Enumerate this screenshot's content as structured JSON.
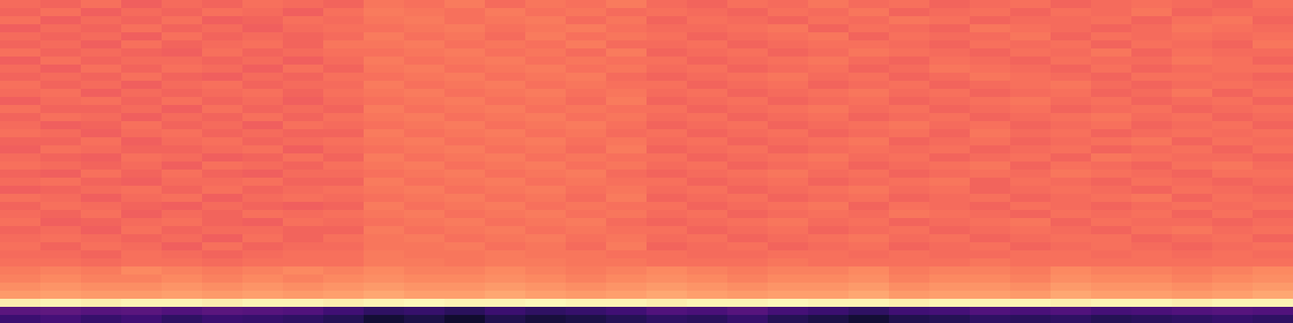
{
  "chart_data": {
    "type": "heatmap",
    "tick_labels": false,
    "color_range": [
      -80,
      0
    ],
    "cells": [
      [
        -25,
        -26,
        -24,
        -27,
        -25,
        -26,
        -24,
        -25,
        -26,
        -23,
        -24,
        -22,
        -25,
        -23,
        -24,
        -22,
        -25,
        -26,
        -24,
        -25,
        -23,
        -25,
        -24,
        -26,
        -25,
        -24,
        -26,
        -25,
        -24,
        -25,
        -26,
        -24
      ],
      [
        -26,
        -24,
        -27,
        -25,
        -26,
        -24,
        -25,
        -27,
        -24,
        -22,
        -23,
        -24,
        -22,
        -24,
        -23,
        -25,
        -24,
        -25,
        -26,
        -24,
        -25,
        -23,
        -26,
        -25,
        -24,
        -26,
        -24,
        -25,
        -23,
        -26,
        -25,
        -25
      ],
      [
        -24,
        -27,
        -25,
        -26,
        -24,
        -27,
        -26,
        -24,
        -25,
        -23,
        -22,
        -24,
        -23,
        -22,
        -25,
        -23,
        -26,
        -24,
        -25,
        -26,
        -24,
        -25,
        -23,
        -24,
        -26,
        -25,
        -25,
        -24,
        -26,
        -24,
        -23,
        -26
      ],
      [
        -27,
        -25,
        -26,
        -24,
        -26,
        -25,
        -27,
        -25,
        -24,
        -24,
        -23,
        -22,
        -24,
        -23,
        -22,
        -24,
        -25,
        -25,
        -24,
        -23,
        -26,
        -24,
        -25,
        -26,
        -23,
        -24,
        -25,
        -26,
        -25,
        -23,
        -24,
        -25
      ],
      [
        -25,
        -26,
        -25,
        -27,
        -24,
        -26,
        -25,
        -26,
        -25,
        -22,
        -24,
        -23,
        -25,
        -22,
        -24,
        -23,
        -24,
        -26,
        -25,
        -24,
        -23,
        -26,
        -24,
        -25,
        -25,
        -23,
        -26,
        -24,
        -25,
        -24,
        -25,
        -24
      ],
      [
        -26,
        -25,
        -27,
        -24,
        -26,
        -25,
        -24,
        -26,
        -23,
        -23,
        -22,
        -24,
        -23,
        -24,
        -22,
        -25,
        -25,
        -24,
        -26,
        -25,
        -24,
        -24,
        -25,
        -26,
        -24,
        -25,
        -24,
        -26,
        -24,
        -25,
        -26,
        -23
      ],
      [
        -24,
        -26,
        -25,
        -26,
        -27,
        -24,
        -26,
        -25,
        -24,
        -24,
        -23,
        -22,
        -24,
        -23,
        -25,
        -22,
        -26,
        -25,
        -24,
        -26,
        -25,
        -23,
        -24,
        -25,
        -26,
        -24,
        -25,
        -23,
        -26,
        -24,
        -25,
        -25
      ],
      [
        -27,
        -24,
        -26,
        -25,
        -25,
        -26,
        -25,
        -27,
        -25,
        -22,
        -24,
        -23,
        -22,
        -24,
        -23,
        -24,
        -24,
        -26,
        -25,
        -24,
        -23,
        -25,
        -26,
        -24,
        -25,
        -26,
        -24,
        -25,
        -25,
        -23,
        -24,
        -26
      ],
      [
        -25,
        -27,
        -24,
        -26,
        -24,
        -25,
        -27,
        -24,
        -26,
        -23,
        -22,
        -24,
        -23,
        -22,
        -24,
        -23,
        -25,
        -24,
        -26,
        -25,
        -24,
        -26,
        -25,
        -23,
        -24,
        -25,
        -26,
        -24,
        -26,
        -25,
        -24,
        -24
      ],
      [
        -26,
        -25,
        -26,
        -24,
        -26,
        -27,
        -25,
        -26,
        -24,
        -24,
        -23,
        -22,
        -24,
        -23,
        -22,
        -25,
        -26,
        -25,
        -24,
        -23,
        -25,
        -24,
        -26,
        -25,
        -23,
        -24,
        -25,
        -26,
        -24,
        -24,
        -25,
        -26
      ],
      [
        -24,
        -26,
        -25,
        -27,
        -25,
        -24,
        -26,
        -25,
        -25,
        -22,
        -24,
        -23,
        -22,
        -24,
        -23,
        -24,
        -24,
        -26,
        -25,
        -24,
        -26,
        -25,
        -24,
        -26,
        -25,
        -24,
        -23,
        -25,
        -26,
        -25,
        -24,
        -25
      ],
      [
        -25,
        -24,
        -27,
        -25,
        -26,
        -25,
        -24,
        -26,
        -24,
        -23,
        -22,
        -24,
        -23,
        -22,
        -24,
        -23,
        -25,
        -24,
        -26,
        -25,
        -24,
        -23,
        -25,
        -24,
        -26,
        -25,
        -24,
        -26,
        -25,
        -23,
        -26,
        -24
      ],
      [
        -27,
        -25,
        -24,
        -26,
        -24,
        -26,
        -25,
        -27,
        -25,
        -24,
        -23,
        -22,
        -24,
        -23,
        -25,
        -22,
        -26,
        -25,
        -24,
        -26,
        -25,
        -24,
        -26,
        -25,
        -24,
        -23,
        -25,
        -24,
        -26,
        -25,
        -24,
        -26
      ],
      [
        -24,
        -26,
        -26,
        -25,
        -27,
        -24,
        -26,
        -25,
        -26,
        -22,
        -24,
        -23,
        -22,
        -24,
        -23,
        -24,
        -24,
        -26,
        -25,
        -24,
        -23,
        -25,
        -24,
        -26,
        -25,
        -24,
        -26,
        -25,
        -24,
        -26,
        -25,
        -24
      ],
      [
        -26,
        -24,
        -25,
        -27,
        -25,
        -26,
        -24,
        -26,
        -24,
        -23,
        -22,
        -24,
        -23,
        -22,
        -24,
        -23,
        -25,
        -24,
        -26,
        -25,
        -24,
        -26,
        -25,
        -24,
        -26,
        -25,
        -24,
        -23,
        -25,
        -24,
        -26,
        -25
      ],
      [
        -25,
        -27,
        -26,
        -24,
        -26,
        -25,
        -27,
        -24,
        -25,
        -24,
        -23,
        -22,
        -24,
        -23,
        -22,
        -24,
        -26,
        -25,
        -24,
        -26,
        -25,
        -24,
        -23,
        -25,
        -24,
        -26,
        -25,
        -24,
        -26,
        -25,
        -24,
        -26
      ],
      [
        -24,
        -25,
        -27,
        -25,
        -24,
        -26,
        -25,
        -26,
        -26,
        -22,
        -24,
        -23,
        -22,
        -24,
        -23,
        -25,
        -24,
        -26,
        -25,
        -24,
        -26,
        -25,
        -24,
        -26,
        -23,
        -25,
        -24,
        -26,
        -25,
        -24,
        -25,
        -24
      ],
      [
        -26,
        -26,
        -24,
        -27,
        -25,
        -24,
        -26,
        -25,
        -24,
        -23,
        -22,
        -24,
        -23,
        -22,
        -24,
        -23,
        -25,
        -24,
        -26,
        -25,
        -24,
        -23,
        -26,
        -25,
        -24,
        -26,
        -25,
        -24,
        -23,
        -26,
        -24,
        -25
      ],
      [
        -27,
        -24,
        -25,
        -26,
        -26,
        -25,
        -24,
        -27,
        -25,
        -24,
        -23,
        -22,
        -24,
        -23,
        -25,
        -22,
        -26,
        -25,
        -24,
        -26,
        -25,
        -24,
        -25,
        -24,
        -26,
        -25,
        -24,
        -26,
        -25,
        -24,
        -26,
        -24
      ],
      [
        -25,
        -26,
        -27,
        -24,
        -25,
        -27,
        -26,
        -24,
        -26,
        -22,
        -24,
        -23,
        -22,
        -24,
        -23,
        -24,
        -24,
        -26,
        -25,
        -24,
        -23,
        -25,
        -24,
        -26,
        -25,
        -24,
        -26,
        -23,
        -24,
        -25,
        -25,
        -26
      ],
      [
        -24,
        -25,
        -26,
        -25,
        -27,
        -24,
        -25,
        -26,
        -24,
        -23,
        -22,
        -24,
        -23,
        -22,
        -24,
        -23,
        -25,
        -24,
        -26,
        -25,
        -24,
        -26,
        -25,
        -24,
        -23,
        -26,
        -24,
        -25,
        -26,
        -24,
        -23,
        -25
      ],
      [
        -26,
        -27,
        -24,
        -26,
        -24,
        -26,
        -27,
        -25,
        -25,
        -24,
        -23,
        -22,
        -24,
        -23,
        -22,
        -25,
        -26,
        -25,
        -24,
        -23,
        -25,
        -24,
        -26,
        -25,
        -24,
        -25,
        -23,
        -24,
        -25,
        -26,
        -24,
        -24
      ],
      [
        -25,
        -24,
        -26,
        -27,
        -25,
        -25,
        -24,
        -26,
        -26,
        -22,
        -24,
        -23,
        -22,
        -24,
        -23,
        -24,
        -24,
        -26,
        -25,
        -24,
        -26,
        -25,
        -24,
        -23,
        -26,
        -24,
        -25,
        -26,
        -24,
        -25,
        -26,
        -25
      ],
      [
        -27,
        -26,
        -25,
        -24,
        -26,
        -24,
        -26,
        -25,
        -24,
        -23,
        -22,
        -24,
        -23,
        -22,
        -24,
        -23,
        -25,
        -24,
        -26,
        -25,
        -24,
        -23,
        -25,
        -24,
        -26,
        -25,
        -24,
        -25,
        -26,
        -24,
        -25,
        -26
      ],
      [
        -24,
        -25,
        -27,
        -25,
        -24,
        -27,
        -25,
        -24,
        -25,
        -24,
        -23,
        -22,
        -24,
        -23,
        -25,
        -22,
        -26,
        -25,
        -24,
        -26,
        -25,
        -24,
        -26,
        -25,
        -24,
        -26,
        -25,
        -24,
        -23,
        -26,
        -24,
        -25
      ],
      [
        -26,
        -24,
        -25,
        -26,
        -27,
        -25,
        -26,
        -27,
        -26,
        -22,
        -24,
        -23,
        -22,
        -24,
        -23,
        -24,
        -24,
        -26,
        -25,
        -24,
        -23,
        -26,
        -24,
        -25,
        -26,
        -24,
        -25,
        -26,
        -25,
        -24,
        -25,
        -24
      ],
      [
        -25,
        -26,
        -24,
        -27,
        -25,
        -26,
        -24,
        -25,
        -24,
        -23,
        -22,
        -24,
        -23,
        -22,
        -24,
        -23,
        -25,
        -24,
        -26,
        -25,
        -24,
        -25,
        -23,
        -24,
        -25,
        -26,
        -24,
        -25,
        -24,
        -26,
        -24,
        -26
      ],
      [
        -24,
        -27,
        -26,
        -25,
        -24,
        -26,
        -27,
        -24,
        -25,
        -24,
        -23,
        -22,
        -24,
        -23,
        -22,
        -25,
        -26,
        -25,
        -24,
        -23,
        -25,
        -24,
        -26,
        -25,
        -24,
        -23,
        -26,
        -24,
        -25,
        -25,
        -26,
        -25
      ],
      [
        -26,
        -25,
        -27,
        -24,
        -26,
        -25,
        -25,
        -26,
        -26,
        -22,
        -24,
        -23,
        -22,
        -24,
        -23,
        -24,
        -24,
        -26,
        -25,
        -24,
        -26,
        -25,
        -24,
        -26,
        -25,
        -24,
        -25,
        -26,
        -24,
        -23,
        -25,
        -24
      ],
      [
        -25,
        -24,
        -25,
        -26,
        -25,
        -27,
        -24,
        -26,
        -24,
        -23,
        -22,
        -24,
        -23,
        -22,
        -24,
        -23,
        -25,
        -24,
        -26,
        -25,
        -24,
        -23,
        -25,
        -24,
        -26,
        -25,
        -24,
        -24,
        -26,
        -25,
        -24,
        -26
      ],
      [
        -24,
        -26,
        -24,
        -25,
        -27,
        -24,
        -26,
        -25,
        -25,
        -23,
        -23,
        -22,
        -24,
        -23,
        -25,
        -22,
        -26,
        -25,
        -24,
        -26,
        -25,
        -24,
        -26,
        -25,
        -24,
        -26,
        -25,
        -24,
        -25,
        -26,
        -25,
        -24
      ],
      [
        -25,
        -25,
        -26,
        -24,
        -25,
        -26,
        -25,
        -24,
        -24,
        -22,
        -23,
        -23,
        -22,
        -23,
        -23,
        -24,
        -24,
        -25,
        -25,
        -24,
        -24,
        -25,
        -24,
        -25,
        -25,
        -24,
        -24,
        -25,
        -24,
        -25,
        -24,
        -25
      ],
      [
        -24,
        -24,
        -25,
        -24,
        -24,
        -25,
        -24,
        -24,
        -24,
        -22,
        -22,
        -23,
        -22,
        -22,
        -23,
        -23,
        -24,
        -24,
        -24,
        -23,
        -24,
        -24,
        -24,
        -24,
        -23,
        -24,
        -24,
        -24,
        -24,
        -24,
        -24,
        -24
      ],
      [
        -22,
        -21,
        -22,
        -20,
        -21,
        -22,
        -21,
        -20,
        -21,
        -20,
        -21,
        -21,
        -20,
        -21,
        -22,
        -21,
        -20,
        -21,
        -22,
        -21,
        -21,
        -20,
        -22,
        -21,
        -21,
        -22,
        -20,
        -21,
        -21,
        -22,
        -21,
        -20
      ],
      [
        -21,
        -20,
        -21,
        -21,
        -20,
        -21,
        -20,
        -21,
        -20,
        -19,
        -20,
        -20,
        -19,
        -20,
        -21,
        -20,
        -19,
        -20,
        -21,
        -20,
        -20,
        -19,
        -21,
        -20,
        -20,
        -21,
        -19,
        -20,
        -20,
        -21,
        -20,
        -19
      ],
      [
        -19,
        -18,
        -19,
        -19,
        -18,
        -19,
        -18,
        -19,
        -18,
        -17,
        -18,
        -18,
        -17,
        -18,
        -19,
        -18,
        -17,
        -18,
        -19,
        -18,
        -18,
        -17,
        -19,
        -18,
        -18,
        -19,
        -17,
        -18,
        -18,
        -19,
        -18,
        -17
      ],
      [
        -17,
        -16,
        -17,
        -17,
        -16,
        -17,
        -16,
        -17,
        -16,
        -15,
        -16,
        -16,
        -15,
        -16,
        -17,
        -16,
        -15,
        -16,
        -17,
        -16,
        -16,
        -15,
        -17,
        -16,
        -16,
        -17,
        -15,
        -16,
        -16,
        -17,
        -16,
        -15
      ],
      [
        -3,
        -2,
        -3,
        -2,
        -2,
        -3,
        -2,
        -2,
        -3,
        -2,
        -1,
        -2,
        -2,
        -1,
        -2,
        -2,
        -3,
        -2,
        -2,
        -1,
        -2,
        -2,
        -3,
        -2,
        -2,
        -2,
        -3,
        -2,
        -2,
        -3,
        -2,
        -2
      ],
      [
        -58,
        -57,
        -59,
        -58,
        -60,
        -58,
        -59,
        -60,
        -63,
        -66,
        -65,
        -67,
        -64,
        -66,
        -65,
        -63,
        -60,
        -61,
        -59,
        -62,
        -64,
        -66,
        -63,
        -62,
        -60,
        -61,
        -60,
        -62,
        -61,
        -60,
        -59,
        -60
      ],
      [
        -64,
        -62,
        -65,
        -63,
        -66,
        -64,
        -65,
        -66,
        -68,
        -72,
        -70,
        -73,
        -69,
        -71,
        -70,
        -68,
        -66,
        -67,
        -65,
        -68,
        -70,
        -72,
        -69,
        -68,
        -66,
        -67,
        -66,
        -68,
        -67,
        -66,
        -65,
        -66
      ]
    ]
  }
}
